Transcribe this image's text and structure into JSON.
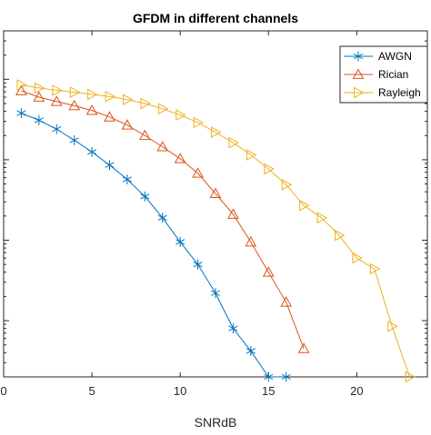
{
  "chart_data": {
    "type": "line",
    "title": "GFDM in different channels",
    "xlabel": "SNRdB",
    "ylabel": "",
    "xlim": [
      0,
      24
    ],
    "ylim": [
      2e-05,
      0.4
    ],
    "yscale": "log",
    "xticks": [
      "0",
      "5",
      "10",
      "15",
      "20"
    ],
    "xtick_values": [
      0,
      5,
      10,
      15,
      20
    ],
    "ytick_values": [
      0.0001,
      0.001,
      0.01,
      0.1
    ],
    "grid": false,
    "legend_position": "top-right",
    "series": [
      {
        "name": "AWGN",
        "color": "#0072BD",
        "marker": "asterisk",
        "x": [
          1,
          2,
          3,
          4,
          5,
          6,
          7,
          8,
          9,
          10,
          11,
          12,
          13,
          14,
          15,
          16
        ],
        "y": [
          0.038,
          0.031,
          0.024,
          0.0175,
          0.0125,
          0.0086,
          0.0057,
          0.0035,
          0.0019,
          0.00095,
          0.0005,
          0.00022,
          8e-05,
          4.2e-05,
          2e-05,
          2e-05
        ]
      },
      {
        "name": "Rician",
        "color": "#D95319",
        "marker": "triangle-up",
        "x": [
          1,
          2,
          3,
          4,
          5,
          6,
          7,
          8,
          9,
          10,
          11,
          12,
          13,
          14,
          15,
          16,
          17
        ],
        "y": [
          0.072,
          0.06,
          0.053,
          0.047,
          0.041,
          0.034,
          0.027,
          0.02,
          0.0145,
          0.0103,
          0.0068,
          0.0038,
          0.0021,
          0.00095,
          0.0004,
          0.00017,
          4.5e-05
        ]
      },
      {
        "name": "Rayleigh",
        "color": "#EDB120",
        "marker": "triangle-right",
        "x": [
          1,
          2,
          3,
          4,
          5,
          6,
          7,
          8,
          9,
          10,
          11,
          12,
          13,
          14,
          15,
          16,
          17,
          18,
          19,
          20,
          21,
          22,
          23
        ],
        "y": [
          0.085,
          0.078,
          0.073,
          0.069,
          0.065,
          0.061,
          0.056,
          0.05,
          0.043,
          0.036,
          0.029,
          0.022,
          0.0163,
          0.0115,
          0.0077,
          0.0049,
          0.0027,
          0.0019,
          0.00115,
          0.0006,
          0.00044,
          8.5e-05,
          2e-05
        ]
      }
    ]
  }
}
